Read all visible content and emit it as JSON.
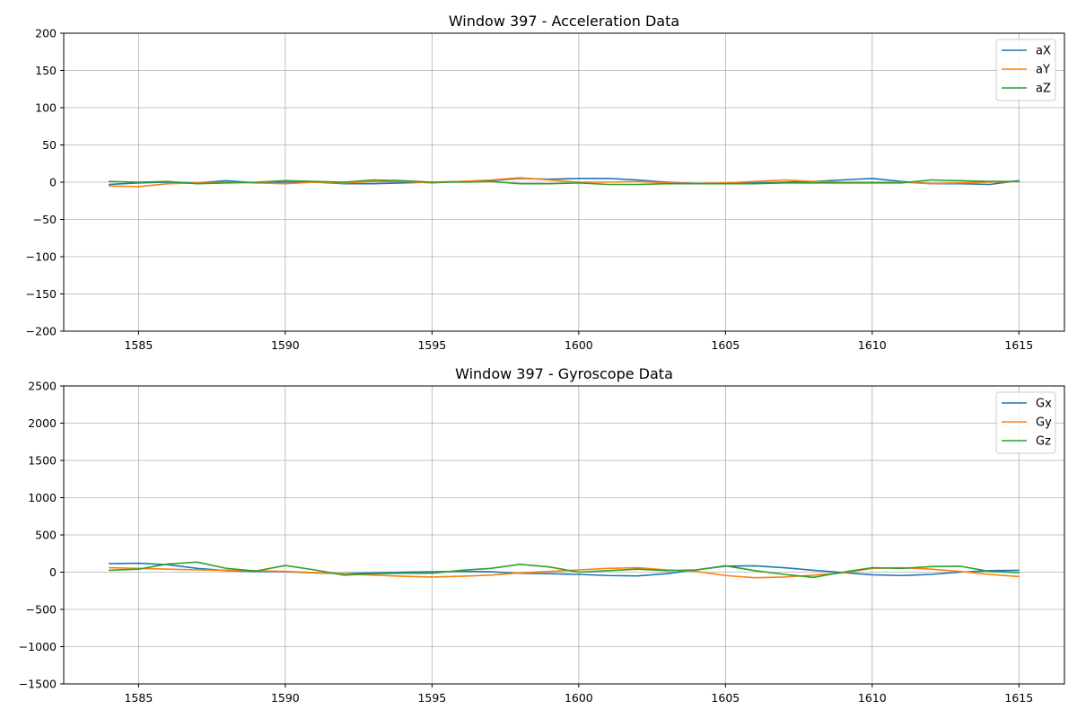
{
  "chart_data": [
    {
      "type": "line",
      "title": "Window 397 - Acceleration Data",
      "xlabel": "",
      "ylabel": "",
      "xlim": [
        1582.45,
        1616.55
      ],
      "ylim": [
        -200,
        200
      ],
      "xticks": [
        1585,
        1590,
        1595,
        1600,
        1605,
        1610,
        1615
      ],
      "yticks": [
        -200,
        -150,
        -100,
        -50,
        0,
        50,
        100,
        150,
        200
      ],
      "ytick_labels": [
        "−200",
        "−150",
        "−100",
        "−50",
        "0",
        "50",
        "100",
        "150",
        "200"
      ],
      "grid": true,
      "legend_position": "top-right",
      "x": [
        1584,
        1585,
        1586,
        1587,
        1588,
        1589,
        1590,
        1591,
        1592,
        1593,
        1594,
        1595,
        1596,
        1597,
        1598,
        1599,
        1600,
        1601,
        1602,
        1603,
        1604,
        1605,
        1606,
        1607,
        1608,
        1609,
        1610,
        1611,
        1612,
        1613,
        1614,
        1615
      ],
      "series": [
        {
          "name": "aX",
          "color": "#1f77b4",
          "values": [
            -3,
            -1,
            0,
            -1,
            2,
            -1,
            0,
            0,
            -2,
            -2,
            -1,
            0,
            1,
            2,
            5,
            4,
            5,
            5,
            3,
            0,
            -2,
            -2,
            -1,
            0,
            1,
            3,
            5,
            1,
            -2,
            -2,
            -3,
            2
          ]
        },
        {
          "name": "aY",
          "color": "#ff7f0e",
          "values": [
            -5,
            -6,
            -2,
            -1,
            0,
            -1,
            -2,
            0,
            -1,
            1,
            1,
            -1,
            1,
            3,
            6,
            3,
            0,
            0,
            1,
            -1,
            -2,
            -1,
            1,
            3,
            1,
            0,
            0,
            0,
            -2,
            -1,
            0,
            1
          ]
        },
        {
          "name": "aZ",
          "color": "#2ca02c",
          "values": [
            1,
            0,
            1,
            -2,
            -1,
            0,
            2,
            1,
            0,
            3,
            2,
            0,
            0,
            1,
            -2,
            -2,
            -1,
            -3,
            -3,
            -2,
            -2,
            -2,
            -2,
            -1,
            -1,
            -1,
            -1,
            -1,
            3,
            2,
            1,
            1
          ]
        }
      ]
    },
    {
      "type": "line",
      "title": "Window 397 - Gyroscope Data",
      "xlabel": "",
      "ylabel": "",
      "xlim": [
        1582.45,
        1616.55
      ],
      "ylim": [
        -1500,
        2500
      ],
      "xticks": [
        1585,
        1590,
        1595,
        1600,
        1605,
        1610,
        1615
      ],
      "yticks": [
        -1500,
        -1000,
        -500,
        0,
        500,
        1000,
        1500,
        2000,
        2500
      ],
      "ytick_labels": [
        "−1500",
        "−1000",
        "−500",
        "0",
        "500",
        "1000",
        "1500",
        "2000",
        "2500"
      ],
      "grid": true,
      "legend_position": "top-right",
      "x": [
        1584,
        1585,
        1586,
        1587,
        1588,
        1589,
        1590,
        1591,
        1592,
        1593,
        1594,
        1595,
        1596,
        1597,
        1598,
        1599,
        1600,
        1601,
        1602,
        1603,
        1604,
        1605,
        1606,
        1607,
        1608,
        1609,
        1610,
        1611,
        1612,
        1613,
        1614,
        1615
      ],
      "series": [
        {
          "name": "Gx",
          "color": "#1f77b4",
          "values": [
            115,
            120,
            100,
            50,
            20,
            10,
            5,
            -10,
            -20,
            -10,
            0,
            5,
            10,
            5,
            -15,
            -20,
            -30,
            -45,
            -50,
            -20,
            30,
            80,
            85,
            60,
            25,
            -5,
            -35,
            -45,
            -30,
            0,
            20,
            25
          ]
        },
        {
          "name": "Gy",
          "color": "#ff7f0e",
          "values": [
            60,
            50,
            40,
            30,
            25,
            20,
            10,
            -5,
            -20,
            -40,
            -55,
            -65,
            -55,
            -40,
            -10,
            10,
            30,
            50,
            60,
            30,
            10,
            -45,
            -75,
            -65,
            -40,
            -10,
            50,
            60,
            40,
            10,
            -30,
            -60
          ]
        },
        {
          "name": "Gz",
          "color": "#2ca02c",
          "values": [
            25,
            40,
            110,
            135,
            50,
            15,
            90,
            30,
            -40,
            -20,
            -15,
            -15,
            25,
            50,
            105,
            70,
            0,
            20,
            40,
            20,
            30,
            85,
            20,
            -30,
            -70,
            0,
            60,
            50,
            75,
            80,
            10,
            -5
          ]
        }
      ]
    }
  ]
}
